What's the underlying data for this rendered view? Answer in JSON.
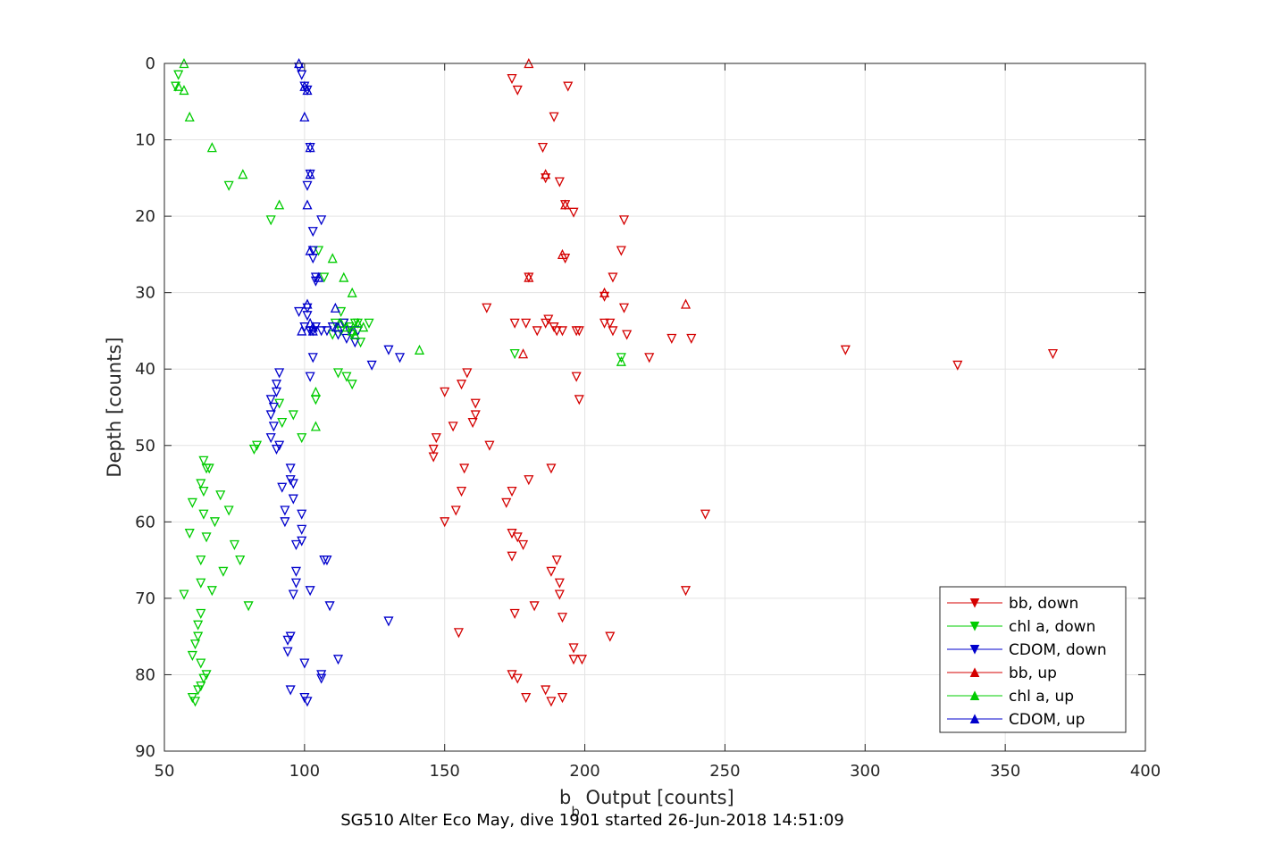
{
  "chart_data": {
    "type": "scatter",
    "title": "SG510 Alter Eco May, dive 1901 started 26-Jun-2018 14:51:09",
    "xlabel_main": "b",
    "xlabel_sub": "b",
    "xlabel_rest": " Output [counts]",
    "ylabel": "Depth [counts]",
    "xlim": [
      50,
      400
    ],
    "ylim": [
      0,
      90
    ],
    "y_reversed": true,
    "grid": true,
    "xticks": [
      50,
      100,
      150,
      200,
      250,
      300,
      350,
      400
    ],
    "yticks": [
      0,
      10,
      20,
      30,
      40,
      50,
      60,
      70,
      80,
      90
    ],
    "legend_position": "bottom-right",
    "series": [
      {
        "name": "bb, down",
        "color": "#d40000",
        "marker": "down",
        "points": [
          [
            174,
            2
          ],
          [
            176,
            3.5
          ],
          [
            194,
            3
          ],
          [
            189,
            7
          ],
          [
            185,
            11
          ],
          [
            186,
            15
          ],
          [
            191,
            15.5
          ],
          [
            196,
            19.5
          ],
          [
            193,
            18.5
          ],
          [
            214,
            20.5
          ],
          [
            213,
            24.5
          ],
          [
            193,
            25.5
          ],
          [
            180,
            28
          ],
          [
            210,
            28
          ],
          [
            207,
            30.5
          ],
          [
            165,
            32
          ],
          [
            175,
            34
          ],
          [
            179,
            34
          ],
          [
            183,
            35
          ],
          [
            186,
            34
          ],
          [
            187,
            33.5
          ],
          [
            189,
            34.5
          ],
          [
            190,
            35
          ],
          [
            192,
            35
          ],
          [
            197,
            35
          ],
          [
            198,
            35
          ],
          [
            207,
            34
          ],
          [
            209,
            34
          ],
          [
            210,
            35
          ],
          [
            215,
            35.5
          ],
          [
            214,
            32
          ],
          [
            231,
            36
          ],
          [
            238,
            36
          ],
          [
            223,
            38.5
          ],
          [
            293,
            37.5
          ],
          [
            333,
            39.5
          ],
          [
            367,
            38
          ],
          [
            158,
            40.5
          ],
          [
            156,
            42
          ],
          [
            150,
            43
          ],
          [
            197,
            41
          ],
          [
            198,
            44
          ],
          [
            161,
            44.5
          ],
          [
            161,
            46
          ],
          [
            160,
            47
          ],
          [
            153,
            47.5
          ],
          [
            147,
            49
          ],
          [
            146,
            50.5
          ],
          [
            146,
            51.5
          ],
          [
            166,
            50
          ],
          [
            157,
            53
          ],
          [
            188,
            53
          ],
          [
            180,
            54.5
          ],
          [
            174,
            56
          ],
          [
            156,
            56
          ],
          [
            172,
            57.5
          ],
          [
            154,
            58.5
          ],
          [
            150,
            60
          ],
          [
            243,
            59
          ],
          [
            174,
            61.5
          ],
          [
            176,
            62
          ],
          [
            178,
            63
          ],
          [
            190,
            65
          ],
          [
            188,
            66.5
          ],
          [
            174,
            64.5
          ],
          [
            191,
            68
          ],
          [
            191,
            69.5
          ],
          [
            236,
            69
          ],
          [
            175,
            72
          ],
          [
            182,
            71
          ],
          [
            192,
            72.5
          ],
          [
            155,
            74.5
          ],
          [
            209,
            75
          ],
          [
            196,
            76.5
          ],
          [
            196,
            78
          ],
          [
            199,
            78
          ],
          [
            174,
            80
          ],
          [
            176,
            80.5
          ],
          [
            186,
            82
          ],
          [
            179,
            83
          ],
          [
            188,
            83.5
          ],
          [
            192,
            83
          ]
        ]
      },
      {
        "name": "chl a, down",
        "color": "#00cc00",
        "marker": "down",
        "points": [
          [
            55,
            1.5
          ],
          [
            54,
            3
          ],
          [
            73,
            16
          ],
          [
            88,
            20.5
          ],
          [
            105,
            24.5
          ],
          [
            107,
            28
          ],
          [
            113,
            32.5
          ],
          [
            111,
            34
          ],
          [
            114,
            34
          ],
          [
            116,
            34.5
          ],
          [
            118,
            34
          ],
          [
            119,
            34
          ],
          [
            123,
            34
          ],
          [
            110,
            35.5
          ],
          [
            113,
            35
          ],
          [
            117,
            35.5
          ],
          [
            120,
            36.5
          ],
          [
            175,
            38
          ],
          [
            213,
            38.5
          ],
          [
            112,
            40.5
          ],
          [
            115,
            41
          ],
          [
            117,
            42
          ],
          [
            104,
            44
          ],
          [
            92,
            47
          ],
          [
            96,
            46
          ],
          [
            91,
            44.5
          ],
          [
            99,
            49
          ],
          [
            82,
            50.5
          ],
          [
            83,
            50
          ],
          [
            64,
            52
          ],
          [
            66,
            53
          ],
          [
            65,
            53
          ],
          [
            63,
            55
          ],
          [
            64,
            56
          ],
          [
            60,
            57.5
          ],
          [
            70,
            56.5
          ],
          [
            73,
            58.5
          ],
          [
            64,
            59
          ],
          [
            68,
            60
          ],
          [
            65,
            62
          ],
          [
            59,
            61.5
          ],
          [
            75,
            63
          ],
          [
            77,
            65
          ],
          [
            63,
            65
          ],
          [
            71,
            66.5
          ],
          [
            63,
            68
          ],
          [
            67,
            69
          ],
          [
            57,
            69.5
          ],
          [
            80,
            71
          ],
          [
            63,
            72
          ],
          [
            62,
            73.5
          ],
          [
            62,
            75
          ],
          [
            61,
            76
          ],
          [
            60,
            77.5
          ],
          [
            63,
            78.5
          ],
          [
            65,
            80
          ],
          [
            64,
            80.5
          ],
          [
            63,
            81.5
          ],
          [
            62,
            82
          ],
          [
            60,
            83
          ],
          [
            61,
            83.5
          ]
        ]
      },
      {
        "name": "CDOM, down",
        "color": "#0000cc",
        "marker": "down",
        "points": [
          [
            98,
            0.5
          ],
          [
            99,
            1.5
          ],
          [
            100,
            3
          ],
          [
            101,
            3.5
          ],
          [
            102,
            11
          ],
          [
            102,
            14.5
          ],
          [
            101,
            16
          ],
          [
            106,
            20.5
          ],
          [
            103,
            22
          ],
          [
            103,
            24.5
          ],
          [
            103,
            25.5
          ],
          [
            104,
            28
          ],
          [
            104,
            28.5
          ],
          [
            98,
            32.5
          ],
          [
            101,
            32
          ],
          [
            101,
            33
          ],
          [
            100,
            34.5
          ],
          [
            102,
            35
          ],
          [
            103,
            35
          ],
          [
            104,
            34.5
          ],
          [
            106,
            35
          ],
          [
            108,
            35
          ],
          [
            110,
            34.5
          ],
          [
            114,
            34
          ],
          [
            116,
            35
          ],
          [
            118,
            36.5
          ],
          [
            119,
            35
          ],
          [
            112,
            35.5
          ],
          [
            115,
            36
          ],
          [
            130,
            37.5
          ],
          [
            134,
            38.5
          ],
          [
            124,
            39.5
          ],
          [
            103,
            38.5
          ],
          [
            91,
            40.5
          ],
          [
            102,
            41
          ],
          [
            90,
            42
          ],
          [
            90,
            43
          ],
          [
            88,
            44
          ],
          [
            89,
            45
          ],
          [
            88,
            46
          ],
          [
            89,
            47.5
          ],
          [
            88,
            49
          ],
          [
            90,
            50.5
          ],
          [
            91,
            50
          ],
          [
            95,
            53
          ],
          [
            95,
            54.5
          ],
          [
            92,
            55.5
          ],
          [
            96,
            55
          ],
          [
            96,
            57
          ],
          [
            93,
            58.5
          ],
          [
            93,
            60
          ],
          [
            99,
            59
          ],
          [
            99,
            61
          ],
          [
            99,
            62.5
          ],
          [
            97,
            63
          ],
          [
            97,
            66.5
          ],
          [
            97,
            68
          ],
          [
            96,
            69.5
          ],
          [
            107,
            65
          ],
          [
            108,
            65
          ],
          [
            102,
            69
          ],
          [
            109,
            71
          ],
          [
            130,
            73
          ],
          [
            94,
            75.5
          ],
          [
            95,
            75
          ],
          [
            94,
            77
          ],
          [
            100,
            78.5
          ],
          [
            106,
            80
          ],
          [
            106,
            80.5
          ],
          [
            112,
            78
          ],
          [
            95,
            82
          ],
          [
            100,
            83
          ],
          [
            101,
            83.5
          ]
        ]
      },
      {
        "name": "bb, up",
        "color": "#d40000",
        "marker": "up",
        "points": [
          [
            180,
            0
          ],
          [
            186,
            14.5
          ],
          [
            193,
            18.5
          ],
          [
            192,
            25
          ],
          [
            180,
            28
          ],
          [
            207,
            30
          ],
          [
            236,
            31.5
          ],
          [
            178,
            38
          ]
        ]
      },
      {
        "name": "chl a, up",
        "color": "#00cc00",
        "marker": "up",
        "points": [
          [
            57,
            0
          ],
          [
            55,
            3
          ],
          [
            57,
            3.5
          ],
          [
            59,
            7
          ],
          [
            67,
            11
          ],
          [
            78,
            14.5
          ],
          [
            91,
            18.5
          ],
          [
            110,
            25.5
          ],
          [
            114,
            28
          ],
          [
            117,
            30
          ],
          [
            113,
            34
          ],
          [
            115,
            34.5
          ],
          [
            119,
            34
          ],
          [
            121,
            34.5
          ],
          [
            117,
            35
          ],
          [
            118,
            35.5
          ],
          [
            141,
            37.5
          ],
          [
            213,
            39
          ],
          [
            104,
            43
          ],
          [
            104,
            47.5
          ]
        ]
      },
      {
        "name": "CDOM, up",
        "color": "#0000cc",
        "marker": "up",
        "points": [
          [
            98,
            0
          ],
          [
            100,
            3
          ],
          [
            101,
            3.5
          ],
          [
            100,
            7
          ],
          [
            102,
            11
          ],
          [
            102,
            14.5
          ],
          [
            101,
            18.5
          ],
          [
            102,
            24.5
          ],
          [
            105,
            28
          ],
          [
            101,
            31.5
          ],
          [
            102,
            34
          ],
          [
            103,
            34.5
          ],
          [
            111,
            32
          ],
          [
            112,
            34.5
          ],
          [
            103,
            35
          ],
          [
            99,
            35
          ]
        ]
      }
    ]
  }
}
